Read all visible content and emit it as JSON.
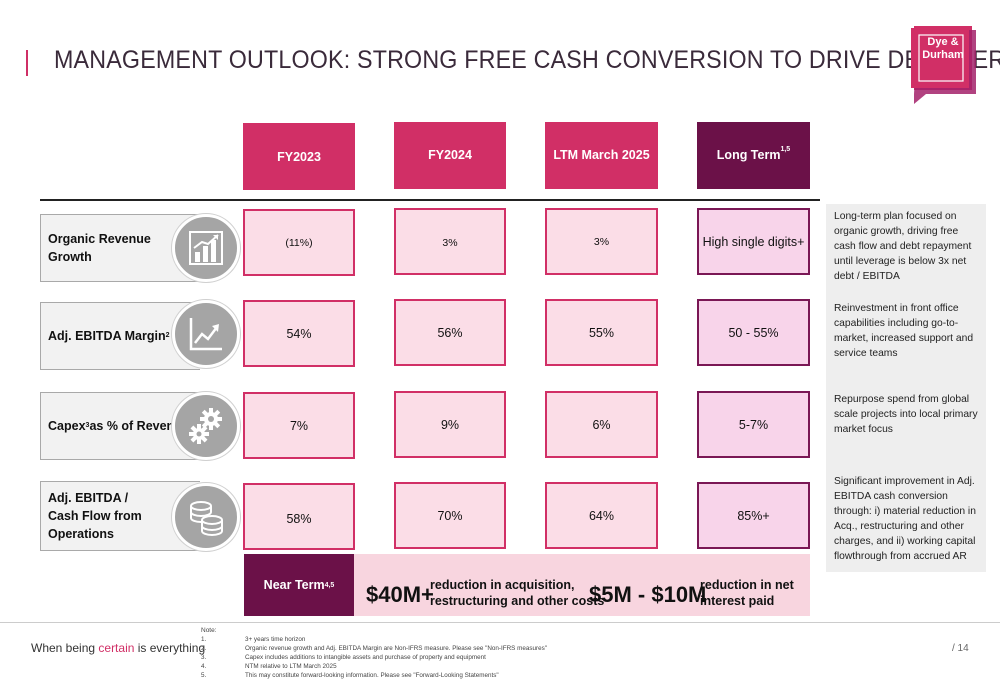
{
  "title": "MANAGEMENT OUTLOOK: STRONG FREE CASH CONVERSION TO DRIVE DE-LEVERING",
  "logo": {
    "line1": "Dye &",
    "line2": "Durham"
  },
  "colors": {
    "pink": "#d12f66",
    "dark_purple": "#6b1148",
    "cell_fill": "#fbdde7",
    "long_term_fill": "#f8d4ea"
  },
  "columns": [
    {
      "label": "FY2023",
      "sup": ""
    },
    {
      "label": "FY2024",
      "sup": ""
    },
    {
      "label": "LTM March 2025",
      "sup": ""
    },
    {
      "label": "Long Term",
      "sup": "1,5"
    }
  ],
  "rows": [
    {
      "label": "Organic Revenue Growth",
      "sup": "2",
      "label_suffix": "",
      "icon": "bar-chart-growth-icon",
      "values": [
        "(11%)",
        "3%",
        "3%",
        "High single digits+"
      ]
    },
    {
      "label": "Adj. EBITDA Margin",
      "sup": "2",
      "label_suffix": "",
      "icon": "line-chart-trend-icon",
      "values": [
        "54%",
        "56%",
        "55%",
        "50 - 55%"
      ]
    },
    {
      "label": "Capex",
      "sup": "3",
      "label_suffix": " as % of Revenue",
      "icon": "gears-icon",
      "values": [
        "7%",
        "9%",
        "6%",
        "5-7%"
      ]
    },
    {
      "label_lines": [
        "Adj. EBITDA /",
        "Cash Flow from",
        "Operations"
      ],
      "icon": "coins-icon",
      "values": [
        "58%",
        "70%",
        "64%",
        "85%+"
      ]
    }
  ],
  "notes": [
    "Long-term plan focused on organic growth, driving free cash flow and debt repayment until leverage is below 3x net debt / EBITDA",
    "Reinvestment in front office capabilities including go-to-market, increased support and service teams",
    "Repurpose spend from global scale projects into local primary market focus",
    "Significant improvement in Adj. EBITDA cash conversion through: i) material reduction in Acq., restructuring and other charges, and ii) working capital flowthrough from accrued AR"
  ],
  "near_term": {
    "label": "Near Term",
    "sup": "4,5",
    "amount1": "$40M+",
    "desc1_line1": "reduction in acquisition,",
    "desc1_line2": "restructuring and other costs",
    "amount2": "$5M - $10M",
    "desc2_line1": "reduction in net",
    "desc2_line2": "interest paid"
  },
  "footer": {
    "tagline_pre": "When being ",
    "tagline_accent": "certain",
    "tagline_post": " is everything",
    "note_title": "Note:",
    "footnotes": [
      {
        "num": "1.",
        "text": "3+ years time horizon"
      },
      {
        "num": "2.",
        "text": "Organic revenue growth and Adj. EBITDA Margin are Non-IFRS measure. Please see \"Non-IFRS measures\""
      },
      {
        "num": "3.",
        "text": "Capex includes additions to intangible assets and purchase of property and equipment"
      },
      {
        "num": "4.",
        "text": "NTM relative to LTM March 2025"
      },
      {
        "num": "5.",
        "text": "This may constitute forward-looking information. Please see \"Forward-Looking Statements\""
      }
    ],
    "page": "/ 14"
  }
}
